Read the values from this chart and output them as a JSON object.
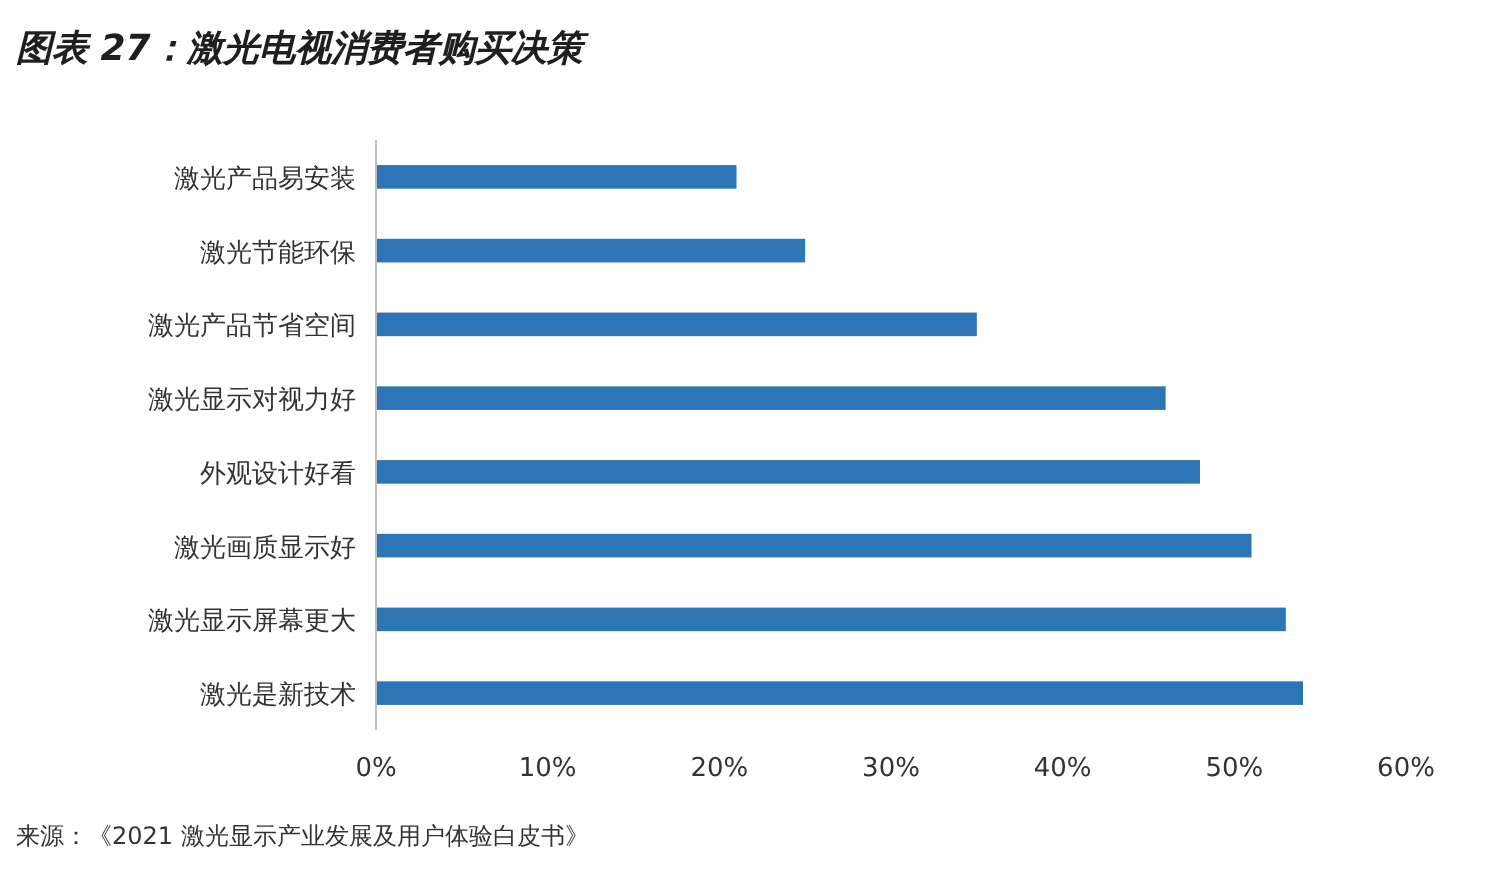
{
  "chart_data": {
    "type": "bar",
    "orientation": "horizontal",
    "title": "图表 27：激光电视消费者购买决策",
    "categories": [
      "激光产品易安装",
      "激光节能环保",
      "激光产品节省空间",
      "激光显示对视力好",
      "外观设计好看",
      "激光画质显示好",
      "激光显示屏幕更大",
      "激光是新技术"
    ],
    "values": [
      21,
      25,
      35,
      46,
      48,
      51,
      53,
      54
    ],
    "color": "#2e75b6",
    "xlim": [
      0,
      60
    ],
    "xticks": [
      {
        "value": 0,
        "label": "0%"
      },
      {
        "value": 10,
        "label": "10%"
      },
      {
        "value": 20,
        "label": "20%"
      },
      {
        "value": 30,
        "label": "30%"
      },
      {
        "value": 40,
        "label": "40%"
      },
      {
        "value": 50,
        "label": "50%"
      },
      {
        "value": 60,
        "label": "60%"
      }
    ],
    "grid": false,
    "annotations": [
      "来源：《2021 激光显示产业发展及用户体验白皮书》"
    ]
  }
}
